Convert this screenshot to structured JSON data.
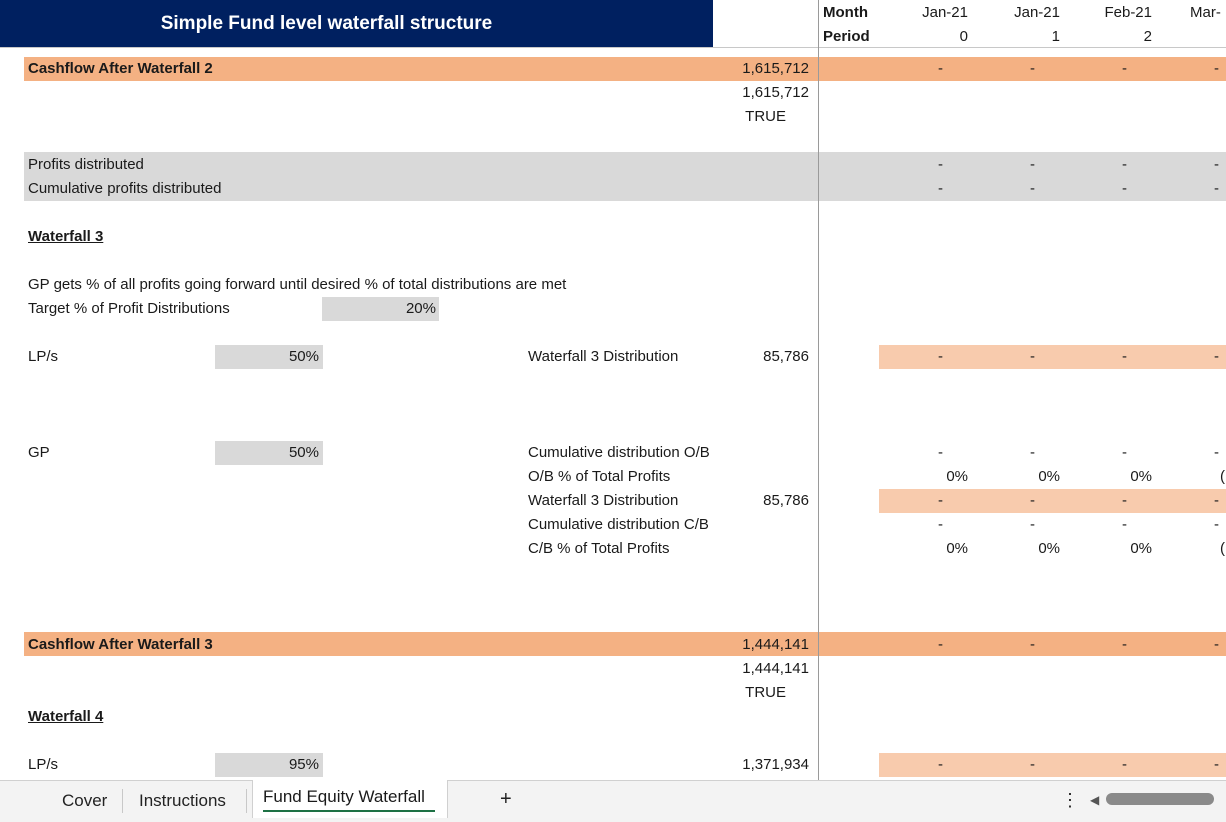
{
  "title": "Simple Fund level waterfall structure",
  "colors": {
    "title_bg": "#002060",
    "dark_band": "#F4B183",
    "light_band": "#F8CBAD",
    "grey_band": "#D9D9D9"
  },
  "header": {
    "row1_label": "Month",
    "row2_label": "Period",
    "months": [
      "Jan-21",
      "Jan-21",
      "Feb-21",
      "Mar-"
    ],
    "periods": [
      "0",
      "1",
      "2",
      ""
    ]
  },
  "rows": {
    "cf2": {
      "label": "Cashflow After Waterfall 2",
      "value": "1,615,712",
      "check_value": "1,615,712",
      "check_flag": "TRUE",
      "cells": [
        "-",
        "-",
        "-",
        "-"
      ]
    },
    "profits_distributed": {
      "label": "Profits distributed",
      "cells": [
        "-",
        "-",
        "-",
        "-"
      ]
    },
    "cumulative_profits": {
      "label": "Cumulative profits distributed",
      "cells": [
        "-",
        "-",
        "-",
        "-"
      ]
    },
    "wf3": {
      "heading": "Waterfall 3",
      "note": "GP gets % of all profits going forward until desired % of total distributions are met",
      "target_label": "Target % of Profit Distributions",
      "target_value": "20%",
      "lp_label": "LP/s",
      "lp_pct": "50%",
      "lp_dist_label": "Waterfall 3 Distribution",
      "lp_dist_value": "85,786",
      "lp_dist_cells": [
        "-",
        "-",
        "-",
        "-"
      ],
      "gp_label": "GP",
      "gp_pct": "50%",
      "cum_ob_label": "Cumulative distribution O/B",
      "cum_ob_cells": [
        "-",
        "-",
        "-",
        "-"
      ],
      "ob_pct_label": "O/B % of Total Profits",
      "ob_pct_cells": [
        "0%",
        "0%",
        "0%",
        "("
      ],
      "gp_dist_label": "Waterfall 3 Distribution",
      "gp_dist_value": "85,786",
      "gp_dist_cells": [
        "-",
        "-",
        "-",
        "-"
      ],
      "cum_cb_label": "Cumulative distribution C/B",
      "cum_cb_cells": [
        "-",
        "-",
        "-",
        "-"
      ],
      "cb_pct_label": "C/B % of Total Profits",
      "cb_pct_cells": [
        "0%",
        "0%",
        "0%",
        "("
      ]
    },
    "cf3": {
      "label": "Cashflow After Waterfall 3",
      "value": "1,444,141",
      "check_value": "1,444,141",
      "check_flag": "TRUE",
      "cells": [
        "-",
        "-",
        "-",
        "-"
      ]
    },
    "wf4": {
      "heading": "Waterfall 4",
      "lp_label": "LP/s",
      "lp_pct": "95%",
      "lp_value": "1,371,934",
      "lp_cells": [
        "-",
        "-",
        "-",
        "-"
      ]
    }
  },
  "tabs": {
    "items": [
      "Cover",
      "Instructions",
      "Fund Equity Waterfall"
    ],
    "active": "Fund Equity Waterfall",
    "add_label": "+",
    "more_label": "⋮",
    "scroll_left_label": "◀"
  }
}
